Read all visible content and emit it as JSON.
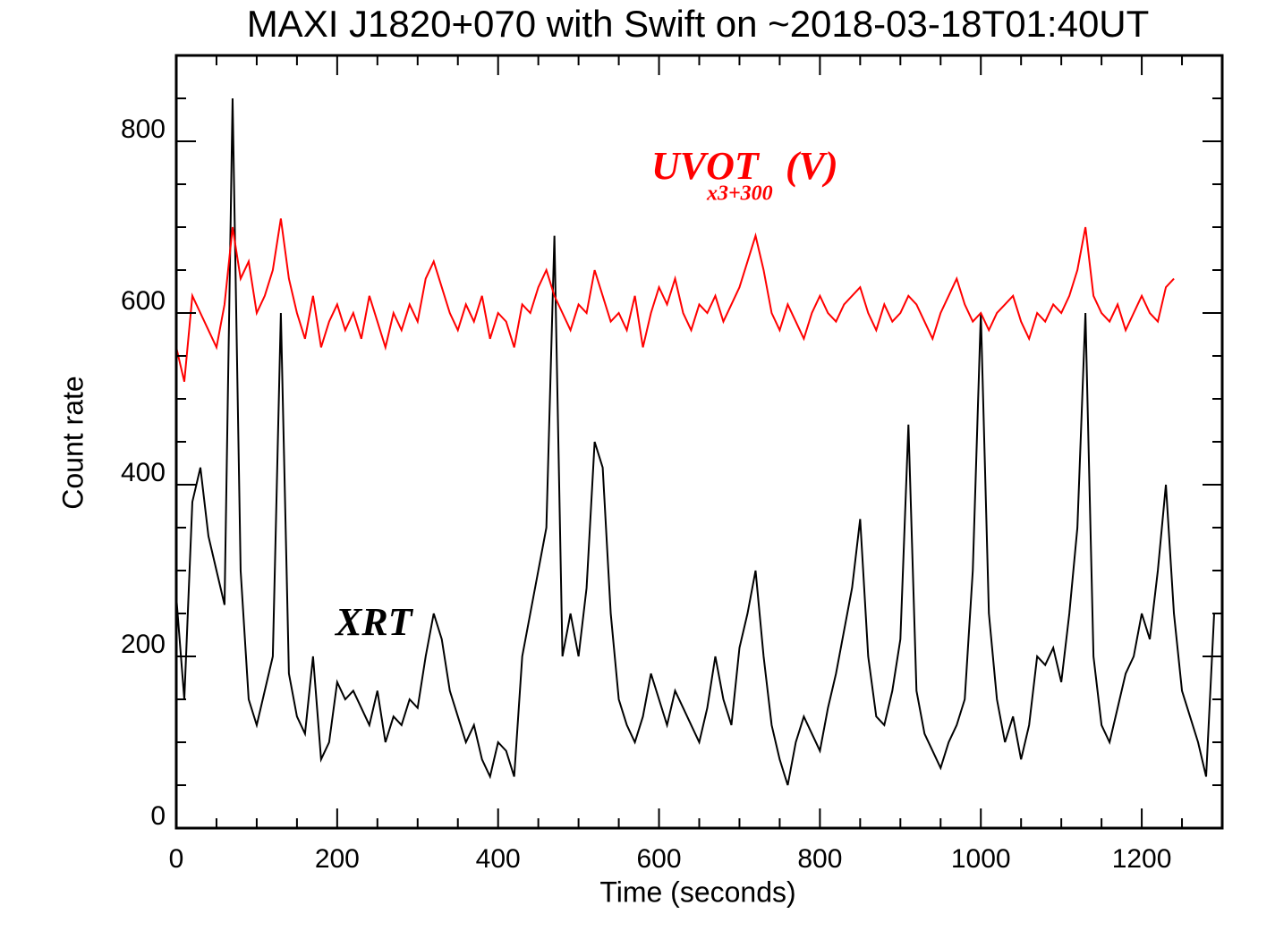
{
  "chart_data": {
    "type": "line",
    "title": "MAXI J1820+070 with Swift on ~2018-03-18T01:40UT",
    "xlabel": "Time (seconds)",
    "ylabel": "Count rate",
    "xlim": [
      0,
      1300
    ],
    "ylim": [
      0,
      900
    ],
    "xticks": [
      0,
      200,
      400,
      600,
      800,
      1000,
      1200
    ],
    "yticks": [
      0,
      200,
      400,
      600,
      800
    ],
    "xminorticks": [
      50,
      100,
      150,
      250,
      300,
      350,
      450,
      500,
      550,
      650,
      700,
      750,
      850,
      900,
      950,
      1050,
      1100,
      1150,
      1250
    ],
    "yminorticks": [
      50,
      100,
      150,
      250,
      300,
      350,
      450,
      500,
      550,
      650,
      700,
      750,
      850
    ],
    "x": [
      0,
      10,
      20,
      30,
      40,
      50,
      60,
      70,
      80,
      90,
      100,
      110,
      120,
      130,
      140,
      150,
      160,
      170,
      180,
      190,
      200,
      210,
      220,
      230,
      240,
      250,
      260,
      270,
      280,
      290,
      300,
      310,
      320,
      330,
      340,
      350,
      360,
      370,
      380,
      390,
      400,
      410,
      420,
      430,
      440,
      450,
      460,
      470,
      480,
      490,
      500,
      510,
      520,
      530,
      540,
      550,
      560,
      570,
      580,
      590,
      600,
      610,
      620,
      630,
      640,
      650,
      660,
      670,
      680,
      690,
      700,
      710,
      720,
      730,
      740,
      750,
      760,
      770,
      780,
      790,
      800,
      810,
      820,
      830,
      840,
      850,
      860,
      870,
      880,
      890,
      900,
      910,
      920,
      930,
      940,
      950,
      960,
      970,
      980,
      990,
      1000,
      1010,
      1020,
      1030,
      1040,
      1050,
      1060,
      1070,
      1080,
      1090,
      1100,
      1110,
      1120,
      1130,
      1140,
      1150,
      1160,
      1170,
      1180,
      1190,
      1200,
      1210,
      1220,
      1230,
      1240,
      1250,
      1260,
      1270,
      1280,
      1290
    ],
    "series": [
      {
        "name": "XRT",
        "color": "#000000",
        "values": [
          270,
          150,
          380,
          420,
          340,
          300,
          260,
          850,
          300,
          150,
          120,
          160,
          200,
          600,
          180,
          130,
          110,
          200,
          80,
          100,
          170,
          150,
          160,
          140,
          120,
          160,
          100,
          130,
          120,
          150,
          140,
          200,
          250,
          220,
          160,
          130,
          100,
          120,
          80,
          60,
          100,
          90,
          60,
          200,
          250,
          300,
          350,
          690,
          200,
          250,
          200,
          280,
          450,
          420,
          250,
          150,
          120,
          100,
          130,
          180,
          150,
          120,
          160,
          140,
          120,
          100,
          140,
          200,
          150,
          120,
          210,
          250,
          300,
          200,
          120,
          80,
          50,
          100,
          130,
          110,
          90,
          140,
          180,
          230,
          280,
          360,
          200,
          130,
          120,
          160,
          220,
          470,
          160,
          110,
          90,
          70,
          100,
          120,
          150,
          300,
          600,
          250,
          150,
          100,
          130,
          80,
          120,
          200,
          190,
          210,
          170,
          250,
          350,
          600,
          200,
          120,
          100,
          140,
          180,
          200,
          250,
          220,
          300,
          400,
          250,
          160,
          130,
          100,
          60,
          250
        ]
      },
      {
        "name": "UVOT",
        "subscript": "x3+300",
        "suffix": "(V)",
        "color": "#ff0000",
        "values": [
          560,
          520,
          620,
          600,
          580,
          560,
          610,
          700,
          640,
          660,
          600,
          620,
          650,
          710,
          640,
          600,
          570,
          620,
          560,
          590,
          610,
          580,
          600,
          570,
          620,
          590,
          560,
          600,
          580,
          610,
          590,
          640,
          660,
          630,
          600,
          580,
          610,
          590,
          620,
          570,
          600,
          590,
          560,
          610,
          600,
          630,
          650,
          620,
          600,
          580,
          610,
          600,
          650,
          620,
          590,
          600,
          580,
          620,
          560,
          600,
          630,
          610,
          640,
          600,
          580,
          610,
          600,
          620,
          590,
          610,
          630,
          660,
          690,
          650,
          600,
          580,
          610,
          590,
          570,
          600,
          620,
          600,
          590,
          610,
          620,
          630,
          600,
          580,
          610,
          590,
          600,
          620,
          610,
          590,
          570,
          600,
          620,
          640,
          610,
          590,
          600,
          580,
          600,
          610,
          620,
          590,
          570,
          600,
          590,
          610,
          600,
          620,
          650,
          700,
          620,
          600,
          590,
          610,
          580,
          600,
          620,
          600,
          590,
          630,
          640,
          null,
          null,
          null,
          null,
          null
        ]
      }
    ]
  }
}
